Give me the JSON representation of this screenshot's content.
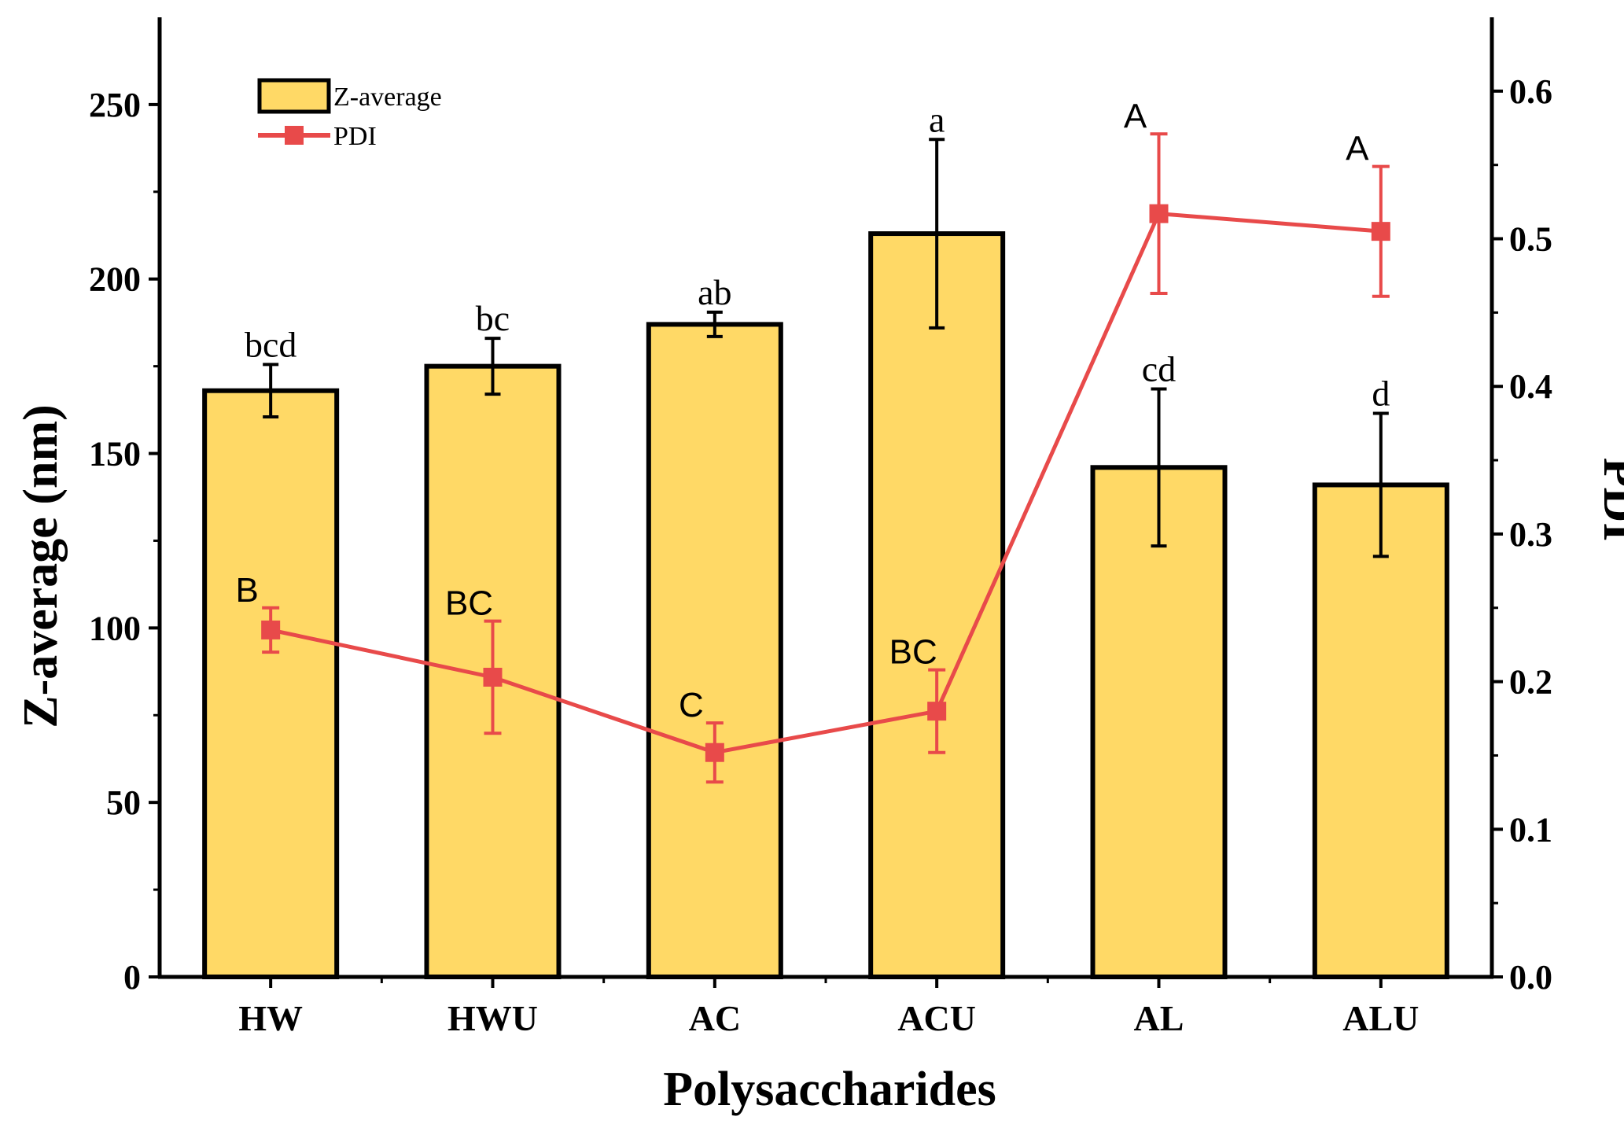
{
  "chart_data": {
    "type": "bar",
    "xlabel": "Polysaccharides",
    "ylabel": "Z-average (nm)",
    "y2label": "PDI",
    "categories": [
      "HW",
      "HWU",
      "AC",
      "ACU",
      "AL",
      "ALU"
    ],
    "ylim": [
      0,
      275
    ],
    "yticks": [
      0,
      50,
      100,
      150,
      200,
      250
    ],
    "y2lim": [
      0,
      0.65
    ],
    "y2ticks": [
      "0.0",
      "0.1",
      "0.2",
      "0.3",
      "0.4",
      "0.5",
      "0.6"
    ],
    "legend_placement": "top-left",
    "series": [
      {
        "name": "Z-average",
        "kind": "bar",
        "axis": "left",
        "color": "#FFD966",
        "values": [
          168,
          175,
          187,
          213,
          146,
          141
        ],
        "errors": [
          7.5,
          8,
          3.5,
          27,
          22.5,
          20.5
        ],
        "significance": [
          "bcd",
          "bc",
          "ab",
          "a",
          "cd",
          "d"
        ]
      },
      {
        "name": "PDI",
        "kind": "line",
        "axis": "right",
        "color": "#E84A4A",
        "values": [
          0.235,
          0.203,
          0.152,
          0.18,
          0.517,
          0.505
        ],
        "errors": [
          0.015,
          0.038,
          0.02,
          0.028,
          0.054,
          0.044
        ],
        "significance": [
          "B",
          "BC",
          "C",
          "BC",
          "A",
          "A"
        ]
      }
    ]
  }
}
